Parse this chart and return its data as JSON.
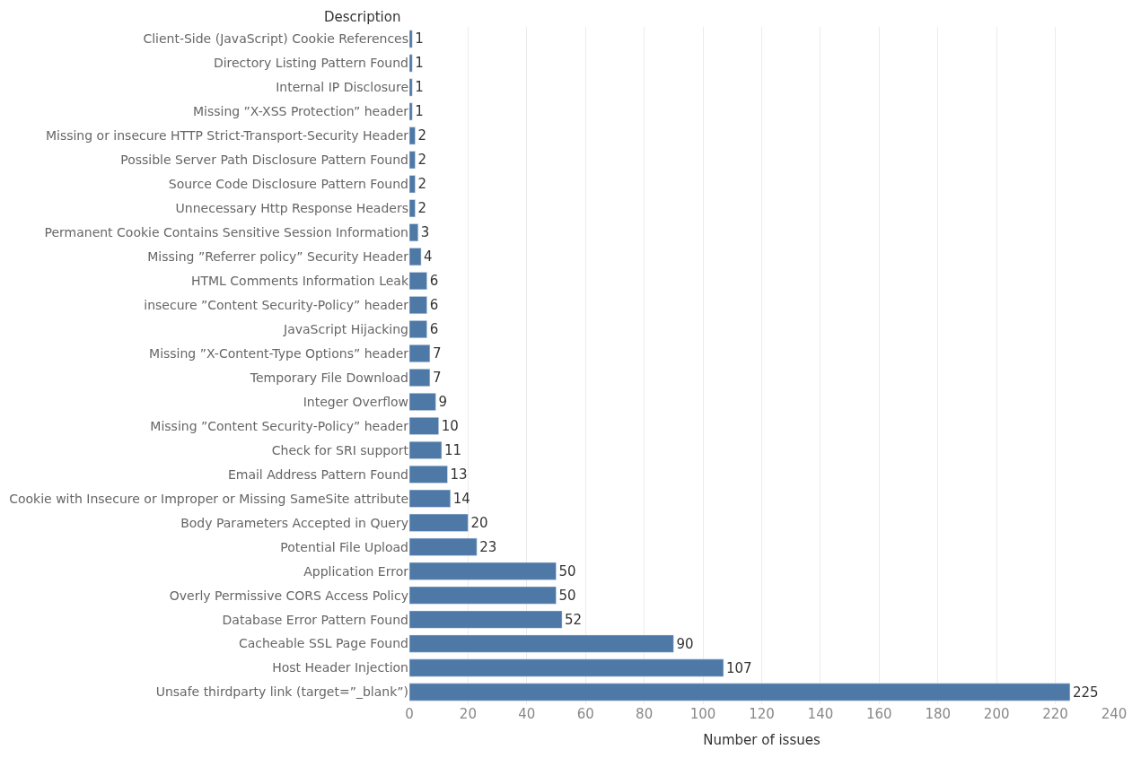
{
  "chart_data": {
    "type": "bar",
    "orientation": "horizontal",
    "xlabel": "Number of issues",
    "ylabel": "Description",
    "categories": [
      "Client-Side (JavaScript) Cookie References",
      "Directory Listing Pattern Found",
      "Internal IP Disclosure",
      "Missing ”X-XSS Protection” header",
      "Missing or insecure HTTP Strict-Transport-Security Header",
      "Possible Server Path Disclosure Pattern Found",
      "Source Code Disclosure Pattern Found",
      "Unnecessary Http Response Headers",
      "Permanent Cookie Contains Sensitive Session Information",
      "Missing ”Referrer policy” Security Header",
      "HTML Comments Information Leak",
      "insecure ”Content Security-Policy” header",
      "JavaScript Hijacking",
      "Missing ”X-Content-Type Options” header",
      "Temporary File Download",
      "Integer Overflow",
      "Missing ”Content Security-Policy” header",
      "Check for SRI support",
      "Email Address Pattern Found",
      "Cookie with Insecure or Improper or Missing SameSite attribute",
      "Body Parameters Accepted in Query",
      "Potential File Upload",
      "Application Error",
      "Overly Permissive CORS Access Policy",
      "Database Error Pattern Found",
      "Cacheable SSL Page Found",
      "Host Header Injection",
      "Unsafe thirdparty link (target=”_blank”)"
    ],
    "values": [
      1,
      1,
      1,
      1,
      2,
      2,
      2,
      2,
      3,
      4,
      6,
      6,
      6,
      7,
      7,
      9,
      10,
      11,
      13,
      14,
      20,
      23,
      50,
      50,
      52,
      90,
      107,
      225
    ],
    "color": "#4e79a7",
    "data_labels": true,
    "grid": "x",
    "xlim": [
      0,
      240
    ],
    "xticks": [
      0,
      20,
      40,
      60,
      80,
      100,
      120,
      140,
      160,
      180,
      200,
      220,
      240
    ]
  }
}
